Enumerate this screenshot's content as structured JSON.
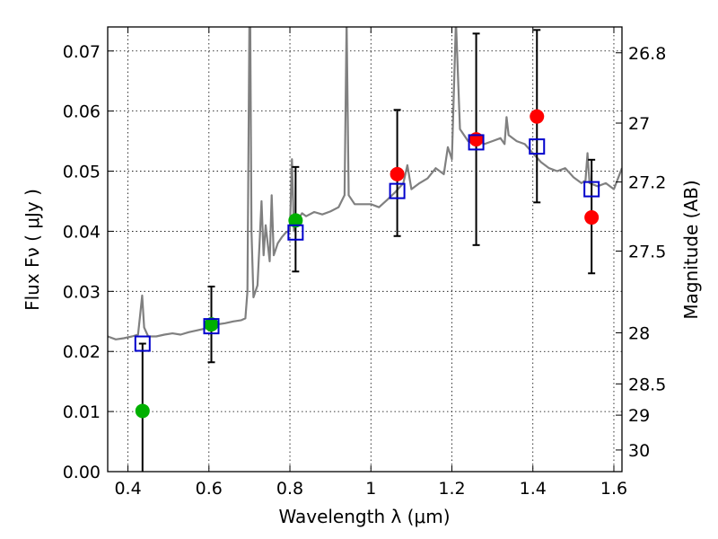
{
  "chart_data": {
    "type": "scatter",
    "xlabel": "Wavelength  λ (μm)",
    "ylabel": "Flux  Fν  ( μJy )",
    "ylabel_right": "Magnitude (AB)",
    "xlim": [
      0.35,
      1.62
    ],
    "ylim": [
      0.0,
      0.074
    ],
    "grid": true,
    "x_ticks": [
      0.4,
      0.6,
      0.8,
      1.0,
      1.2,
      1.4,
      1.6
    ],
    "x_tick_labels": [
      "0.4",
      "0.6",
      "0.8",
      "1",
      "1.2",
      "1.4",
      "1.6"
    ],
    "y_ticks": [
      0.0,
      0.01,
      0.02,
      0.03,
      0.04,
      0.05,
      0.06,
      0.07
    ],
    "y_tick_labels": [
      "0.00",
      "0.01",
      "0.02",
      "0.03",
      "0.04",
      "0.05",
      "0.06",
      "0.07"
    ],
    "right_ticks": [
      {
        "label": "26.8",
        "flux": 0.0697
      },
      {
        "label": "27",
        "flux": 0.058
      },
      {
        "label": "27.2",
        "flux": 0.0482
      },
      {
        "label": "27.5",
        "flux": 0.0367
      },
      {
        "label": "28",
        "flux": 0.0231
      },
      {
        "label": "28.5",
        "flux": 0.0146
      },
      {
        "label": "29",
        "flux": 0.0094
      },
      {
        "label": "30",
        "flux": 0.0036
      }
    ],
    "colors": {
      "spectrum": "#808080",
      "green": "#00b000",
      "red": "#ff0000",
      "model_box": "#0000cc",
      "errorbar": "#000000"
    },
    "series": [
      {
        "kind": "spectrum",
        "x": [
          0.35,
          0.37,
          0.39,
          0.41,
          0.425,
          0.43,
          0.435,
          0.44,
          0.45,
          0.47,
          0.49,
          0.51,
          0.53,
          0.55,
          0.57,
          0.59,
          0.6,
          0.61,
          0.62,
          0.64,
          0.66,
          0.68,
          0.69,
          0.695,
          0.7,
          0.702,
          0.705,
          0.71,
          0.72,
          0.725,
          0.73,
          0.735,
          0.74,
          0.75,
          0.755,
          0.76,
          0.77,
          0.78,
          0.79,
          0.8,
          0.805,
          0.81,
          0.82,
          0.83,
          0.84,
          0.86,
          0.88,
          0.9,
          0.92,
          0.935,
          0.94,
          0.945,
          0.96,
          0.98,
          1.0,
          1.02,
          1.04,
          1.06,
          1.08,
          1.09,
          1.1,
          1.12,
          1.14,
          1.16,
          1.18,
          1.19,
          1.2,
          1.21,
          1.22,
          1.24,
          1.26,
          1.28,
          1.3,
          1.32,
          1.33,
          1.335,
          1.34,
          1.36,
          1.38,
          1.4,
          1.42,
          1.44,
          1.46,
          1.48,
          1.5,
          1.52,
          1.53,
          1.535,
          1.54,
          1.56,
          1.58,
          1.6,
          1.62
        ],
        "y": [
          0.0225,
          0.022,
          0.0222,
          0.0225,
          0.0228,
          0.026,
          0.0293,
          0.024,
          0.0225,
          0.0225,
          0.0228,
          0.023,
          0.0228,
          0.0232,
          0.0235,
          0.0238,
          0.024,
          0.0243,
          0.0245,
          0.0247,
          0.025,
          0.0252,
          0.0255,
          0.03,
          0.075,
          0.075,
          0.04,
          0.029,
          0.031,
          0.038,
          0.045,
          0.036,
          0.041,
          0.035,
          0.046,
          0.036,
          0.038,
          0.039,
          0.0398,
          0.0402,
          0.052,
          0.04,
          0.042,
          0.043,
          0.0425,
          0.0432,
          0.0428,
          0.0433,
          0.044,
          0.046,
          0.075,
          0.046,
          0.0445,
          0.0445,
          0.0445,
          0.044,
          0.0452,
          0.0465,
          0.048,
          0.051,
          0.047,
          0.048,
          0.0488,
          0.0505,
          0.0495,
          0.054,
          0.052,
          0.075,
          0.057,
          0.055,
          0.0552,
          0.0545,
          0.055,
          0.0555,
          0.0545,
          0.059,
          0.056,
          0.055,
          0.0545,
          0.053,
          0.0515,
          0.0505,
          0.05,
          0.0505,
          0.049,
          0.048,
          0.0485,
          0.053,
          0.048,
          0.0475,
          0.048,
          0.047,
          0.0505
        ]
      },
      {
        "kind": "observed",
        "name": "",
        "color": "green",
        "points": [
          {
            "x": 0.436,
            "y": 0.0101
          },
          {
            "x": 0.606,
            "y": 0.0245
          },
          {
            "x": 0.814,
            "y": 0.0418
          }
        ]
      },
      {
        "kind": "observed",
        "name": "",
        "color": "red",
        "points": [
          {
            "x": 1.065,
            "y": 0.0495
          },
          {
            "x": 1.26,
            "y": 0.0553
          },
          {
            "x": 1.41,
            "y": 0.0591
          },
          {
            "x": 1.545,
            "y": 0.0423
          }
        ]
      },
      {
        "kind": "model",
        "points": [
          {
            "x": 0.436,
            "y": 0.0213
          },
          {
            "x": 0.606,
            "y": 0.0242
          },
          {
            "x": 0.814,
            "y": 0.0398
          },
          {
            "x": 1.065,
            "y": 0.0467
          },
          {
            "x": 1.26,
            "y": 0.0548
          },
          {
            "x": 1.41,
            "y": 0.0541
          },
          {
            "x": 1.545,
            "y": 0.047
          }
        ]
      },
      {
        "kind": "errorbars",
        "bars": [
          {
            "x": 0.436,
            "low": 0.0,
            "high": 0.0213
          },
          {
            "x": 0.606,
            "low": 0.0182,
            "high": 0.0308
          },
          {
            "x": 0.814,
            "low": 0.0333,
            "high": 0.0507
          },
          {
            "x": 1.065,
            "low": 0.0392,
            "high": 0.0602
          },
          {
            "x": 1.26,
            "low": 0.0377,
            "high": 0.0729
          },
          {
            "x": 1.41,
            "low": 0.0448,
            "high": 0.0735
          },
          {
            "x": 1.545,
            "low": 0.033,
            "high": 0.0519
          }
        ]
      }
    ]
  }
}
